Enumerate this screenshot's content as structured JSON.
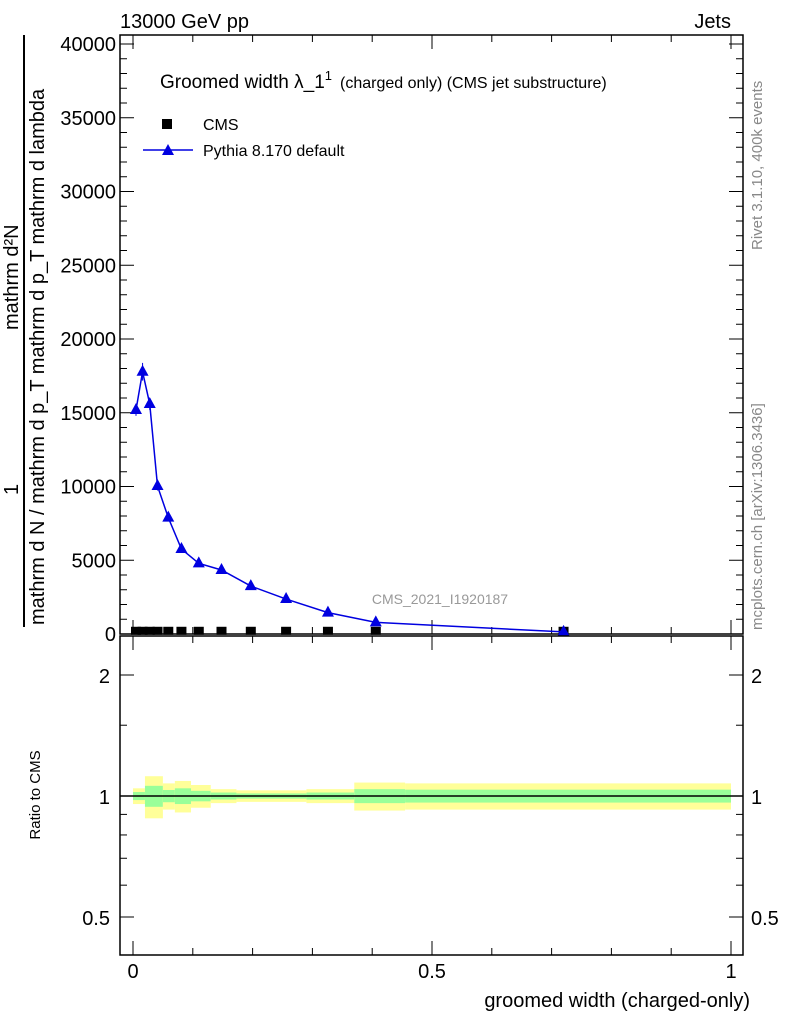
{
  "header": {
    "left": "13000 GeV pp",
    "right": "Jets"
  },
  "side": {
    "rivet": "Rivet 3.1.10,  400k events",
    "mcplots": "mcplots.cern.ch [arXiv:1306.3436]"
  },
  "watermark": "CMS_2021_I1920187",
  "chart_data": [
    {
      "type": "line",
      "title": "Groomed width λ_1^1 (charged only) (CMS jet substructure)",
      "title_main": "Groomed width",
      "title_sym": "λ_1",
      "title_sup": "1",
      "title_rest": "(charged only) (CMS jet substructure)",
      "ylabel_num": "mathrm d²N",
      "ylabel_one": "1",
      "ylabel_den": "mathrm d N / mathrm d p_T mathrm d p_T mathrm d lambda",
      "xlim": [
        -0.02,
        1.01
      ],
      "ylim": [
        0,
        40500
      ],
      "yticks": [
        0,
        5000,
        10000,
        15000,
        20000,
        25000,
        30000,
        35000,
        40000
      ],
      "ytick_labels": [
        "0",
        "5000",
        "10000",
        "15000",
        "20000",
        "25000",
        "30000",
        "35000",
        "40000"
      ],
      "legend": {
        "placement": "top-left",
        "entries": [
          "CMS",
          "Pythia 8.170 default"
        ]
      },
      "series": [
        {
          "name": "CMS",
          "color": "#000000",
          "marker": "square",
          "x": [
            0.005,
            0.016,
            0.028,
            0.041,
            0.059,
            0.081,
            0.11,
            0.148,
            0.197,
            0.256,
            0.326,
            0.406,
            0.72
          ],
          "y": [
            150,
            150,
            150,
            150,
            150,
            150,
            150,
            150,
            150,
            150,
            150,
            150,
            150
          ]
        },
        {
          "name": "Pythia 8.170 default",
          "color": "#0000e0",
          "marker": "triangle",
          "x": [
            0.005,
            0.016,
            0.028,
            0.041,
            0.059,
            0.081,
            0.11,
            0.148,
            0.197,
            0.256,
            0.326,
            0.406,
            0.72
          ],
          "y": [
            15190,
            17780,
            15590,
            10030,
            7890,
            5760,
            4790,
            4340,
            3250,
            2370,
            1450,
            790,
            140
          ],
          "err": [
            400,
            600,
            400,
            300,
            200,
            100,
            80,
            60,
            50,
            40,
            30,
            20,
            10
          ]
        }
      ]
    },
    {
      "type": "area",
      "ylabel": "Ratio to CMS",
      "xlabel": "groomed width (charged-only)",
      "scale": "log",
      "ylim": [
        0.4,
        2.3
      ],
      "yticks": [
        0.5,
        1,
        2
      ],
      "ytick_labels": [
        "0.5",
        "1",
        "2"
      ],
      "xticks": [
        0,
        0.5,
        1
      ],
      "xtick_labels": [
        "0",
        "0.5",
        "1"
      ],
      "bin_edges": [
        0,
        0.02,
        0.05,
        0.07,
        0.097,
        0.13,
        0.173,
        0.29,
        0.37,
        0.455,
        1.0
      ],
      "ratio": [
        1,
        1,
        1,
        1,
        1,
        1,
        1,
        1,
        1,
        1
      ],
      "yellow_err": [
        0.045,
        0.12,
        0.075,
        0.09,
        0.065,
        0.04,
        0.033,
        0.04,
        0.08,
        0.075
      ],
      "green_err": [
        0.023,
        0.06,
        0.035,
        0.045,
        0.03,
        0.02,
        0.015,
        0.02,
        0.04,
        0.037
      ]
    }
  ]
}
